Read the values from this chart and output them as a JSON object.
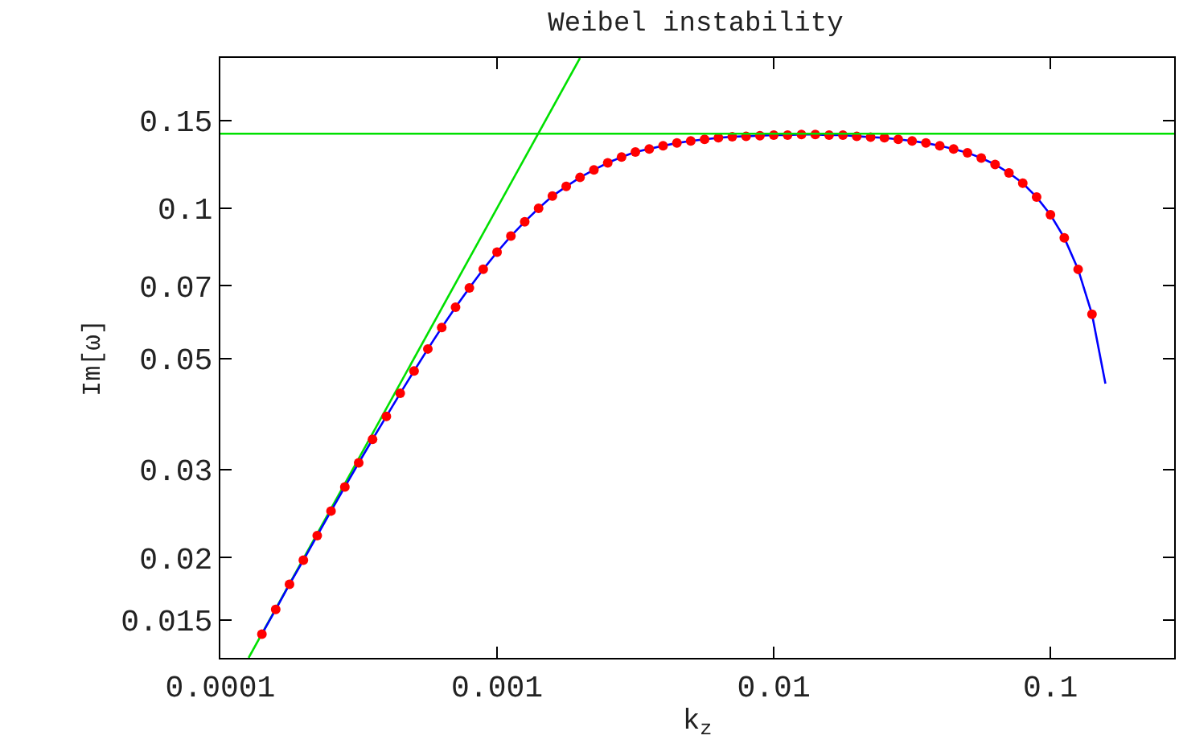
{
  "chart_data": {
    "type": "scatter",
    "title": "Weibel instability",
    "xlabel": "k$_{z}$",
    "ylabel": "Im[ω]",
    "log": "xy",
    "marker": "circle",
    "xlim": [
      0.0001,
      0.28
    ],
    "ylim": [
      0.0126,
      0.2
    ],
    "xticks": [
      0.0001,
      0.001,
      0.01,
      0.1
    ],
    "yticks": [
      0.015,
      0.02,
      0.03,
      0.05,
      0.07,
      0.1,
      0.15
    ],
    "x": [
      0.0001413,
      0.0001585,
      0.0001778,
      0.0001995,
      0.0002239,
      0.0002512,
      0.0002818,
      0.0003162,
      0.0003548,
      0.0003981,
      0.0004467,
      0.0005012,
      0.0005623,
      0.000631,
      0.0007079,
      0.0007943,
      0.0008913,
      0.001,
      0.001122,
      0.001259,
      0.001413,
      0.001585,
      0.001778,
      0.001995,
      0.002239,
      0.002512,
      0.002818,
      0.003162,
      0.003548,
      0.003981,
      0.004467,
      0.005012,
      0.005623,
      0.00631,
      0.007079,
      0.007943,
      0.008913,
      0.01,
      0.01122,
      0.01259,
      0.01413,
      0.01585,
      0.01778,
      0.01995,
      0.02239,
      0.02512,
      0.02818,
      0.03162,
      0.03548,
      0.03981,
      0.04467,
      0.05012,
      0.05623,
      0.0631,
      0.07079,
      0.07943,
      0.08913,
      0.1,
      0.1122,
      0.1259,
      0.1413
    ],
    "series": [
      {
        "type": "line",
        "color": "#00e000",
        "marker": "none",
        "x": [
          0.0001265,
          0.001995
        ],
        "values": [
          0.0126,
          0.2
        ]
      },
      {
        "type": "line",
        "color": "#0000ff",
        "marker": "none",
        "x": [
          0.0001413,
          0.0001585,
          0.0001778,
          0.0001995,
          0.0002239,
          0.0002512,
          0.0002818,
          0.0003162,
          0.0003548,
          0.0003981,
          0.0004467,
          0.0005012,
          0.0005623,
          0.000631,
          0.0007079,
          0.0007943,
          0.0008913,
          0.001,
          0.001122,
          0.001259,
          0.001413,
          0.001585,
          0.001778,
          0.001995,
          0.002239,
          0.002512,
          0.002818,
          0.003162,
          0.003548,
          0.003981,
          0.004467,
          0.005012,
          0.005623,
          0.00631,
          0.007079,
          0.007943,
          0.008913,
          0.01,
          0.01122,
          0.01259,
          0.01413,
          0.01585,
          0.01778,
          0.01995,
          0.02239,
          0.02512,
          0.02818,
          0.03162,
          0.03548,
          0.03981,
          0.04467,
          0.05012,
          0.05623,
          0.0631,
          0.07079,
          0.07943,
          0.08913,
          0.1,
          0.1122,
          0.1259,
          0.1413,
          0.158
        ],
        "values": [
          0.01406,
          0.01575,
          0.01769,
          0.01976,
          0.02214,
          0.02479,
          0.0277,
          0.03095,
          0.03449,
          0.03835,
          0.04263,
          0.04727,
          0.05231,
          0.05773,
          0.06339,
          0.06929,
          0.07551,
          0.08173,
          0.088,
          0.09402,
          0.1,
          0.1058,
          0.1106,
          0.1153,
          0.1194,
          0.1233,
          0.1267,
          0.1296,
          0.1315,
          0.1334,
          0.1351,
          0.1364,
          0.1374,
          0.1384,
          0.1391,
          0.1394,
          0.1398,
          0.1401,
          0.1401,
          0.1405,
          0.1405,
          0.1401,
          0.1401,
          0.1394,
          0.1388,
          0.1384,
          0.1374,
          0.1364,
          0.1351,
          0.1334,
          0.1315,
          0.1292,
          0.1261,
          0.1224,
          0.1177,
          0.1123,
          0.1053,
          0.0971,
          0.0873,
          0.0755,
          0.0614,
          0.0446
        ]
      },
      {
        "color": "#ff0000",
        "values": [
          0.01406,
          0.01575,
          0.01769,
          0.01976,
          0.02214,
          0.02479,
          0.0277,
          0.03095,
          0.03449,
          0.03835,
          0.04263,
          0.04727,
          0.05231,
          0.05773,
          0.06339,
          0.06929,
          0.07551,
          0.08173,
          0.088,
          0.09402,
          0.1,
          0.1058,
          0.1106,
          0.1153,
          0.1194,
          0.1233,
          0.1267,
          0.1296,
          0.1315,
          0.1334,
          0.1351,
          0.1364,
          0.1374,
          0.1384,
          0.1391,
          0.1394,
          0.1398,
          0.1401,
          0.1401,
          0.1405,
          0.1405,
          0.1401,
          0.1401,
          0.1394,
          0.1388,
          0.1384,
          0.1374,
          0.1364,
          0.1351,
          0.1334,
          0.1315,
          0.1292,
          0.1261,
          0.1224,
          0.1177,
          0.1123,
          0.1053,
          0.0971,
          0.0873,
          0.0755,
          0.0614
        ]
      }
    ],
    "ref_lines": [
      {
        "axis": "y",
        "value": 0.141,
        "color": "#00e000"
      }
    ]
  }
}
